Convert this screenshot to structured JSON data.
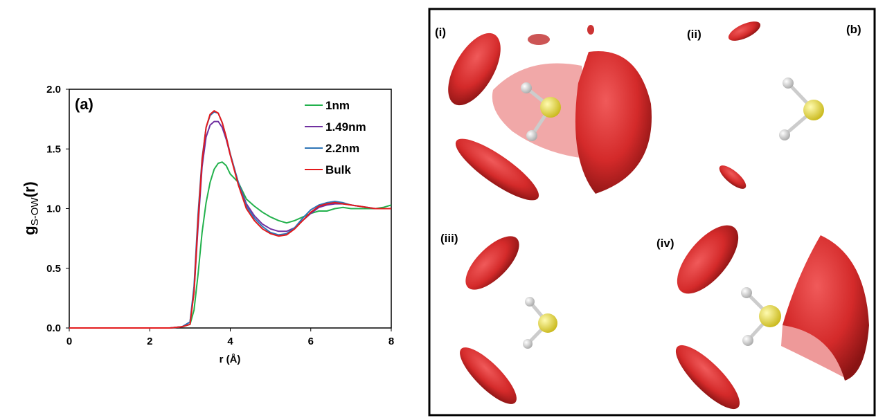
{
  "chart_data": {
    "type": "line",
    "annotation": "(a)",
    "xlabel": "r (Å)",
    "ylabel": "g",
    "ylabel_subscript": "S-OW",
    "ylabel_suffix": "(r)",
    "x": [
      0,
      1,
      2,
      2.5,
      2.8,
      3.0,
      3.1,
      3.2,
      3.3,
      3.4,
      3.5,
      3.6,
      3.7,
      3.8,
      3.9,
      4.0,
      4.2,
      4.4,
      4.6,
      4.8,
      5.0,
      5.2,
      5.4,
      5.6,
      5.8,
      6.0,
      6.2,
      6.4,
      6.6,
      6.8,
      7.0,
      7.2,
      7.4,
      7.6,
      7.8,
      8.0
    ],
    "series": [
      {
        "name": "1nm",
        "color": "#22b14c",
        "values": [
          0,
          0,
          0,
          0,
          0.01,
          0.03,
          0.15,
          0.45,
          0.8,
          1.05,
          1.22,
          1.33,
          1.38,
          1.39,
          1.36,
          1.29,
          1.22,
          1.08,
          1.02,
          0.97,
          0.93,
          0.9,
          0.88,
          0.9,
          0.93,
          0.96,
          0.98,
          0.98,
          1.0,
          1.01,
          1.0,
          1.0,
          1.0,
          1.0,
          1.01,
          1.03
        ]
      },
      {
        "name": "1.49nm",
        "color": "#7030a0",
        "values": [
          0,
          0,
          0,
          0,
          0.01,
          0.05,
          0.3,
          0.85,
          1.35,
          1.6,
          1.7,
          1.73,
          1.73,
          1.68,
          1.58,
          1.45,
          1.22,
          1.04,
          0.94,
          0.87,
          0.83,
          0.81,
          0.81,
          0.84,
          0.9,
          0.96,
          1.01,
          1.03,
          1.04,
          1.04,
          1.03,
          1.02,
          1.01,
          1.0,
          1.0,
          1.0
        ]
      },
      {
        "name": "2.2nm",
        "color": "#2e75b6",
        "values": [
          0,
          0,
          0,
          0,
          0.01,
          0.05,
          0.35,
          0.95,
          1.42,
          1.68,
          1.78,
          1.81,
          1.8,
          1.72,
          1.6,
          1.46,
          1.22,
          1.02,
          0.92,
          0.85,
          0.8,
          0.78,
          0.79,
          0.84,
          0.92,
          0.99,
          1.03,
          1.05,
          1.06,
          1.05,
          1.03,
          1.02,
          1.01,
          1.0,
          1.0,
          1.0
        ]
      },
      {
        "name": "Bulk",
        "color": "#e31a1c",
        "values": [
          0,
          0,
          0,
          0,
          0.01,
          0.03,
          0.3,
          0.9,
          1.4,
          1.68,
          1.79,
          1.82,
          1.8,
          1.72,
          1.6,
          1.45,
          1.2,
          1.0,
          0.9,
          0.83,
          0.79,
          0.77,
          0.78,
          0.83,
          0.9,
          0.97,
          1.02,
          1.04,
          1.05,
          1.04,
          1.03,
          1.02,
          1.01,
          1.0,
          1.0,
          1.0
        ]
      }
    ],
    "xlim": [
      0,
      8
    ],
    "xticks": [
      0,
      2,
      4,
      6,
      8
    ],
    "ylim": [
      0,
      2
    ],
    "yticks": [
      {
        "value": 0,
        "label": "0.0"
      },
      {
        "value": 0.5,
        "label": "0.5"
      },
      {
        "value": 1,
        "label": "1.0"
      },
      {
        "value": 1.5,
        "label": "1.5"
      },
      {
        "value": 2,
        "label": "2.0"
      }
    ],
    "grid": false,
    "legend": "top-right"
  },
  "panel_b": {
    "label": "(b)",
    "subpanels": [
      "(i)",
      "(ii)",
      "(iii)",
      "(iv)"
    ]
  }
}
